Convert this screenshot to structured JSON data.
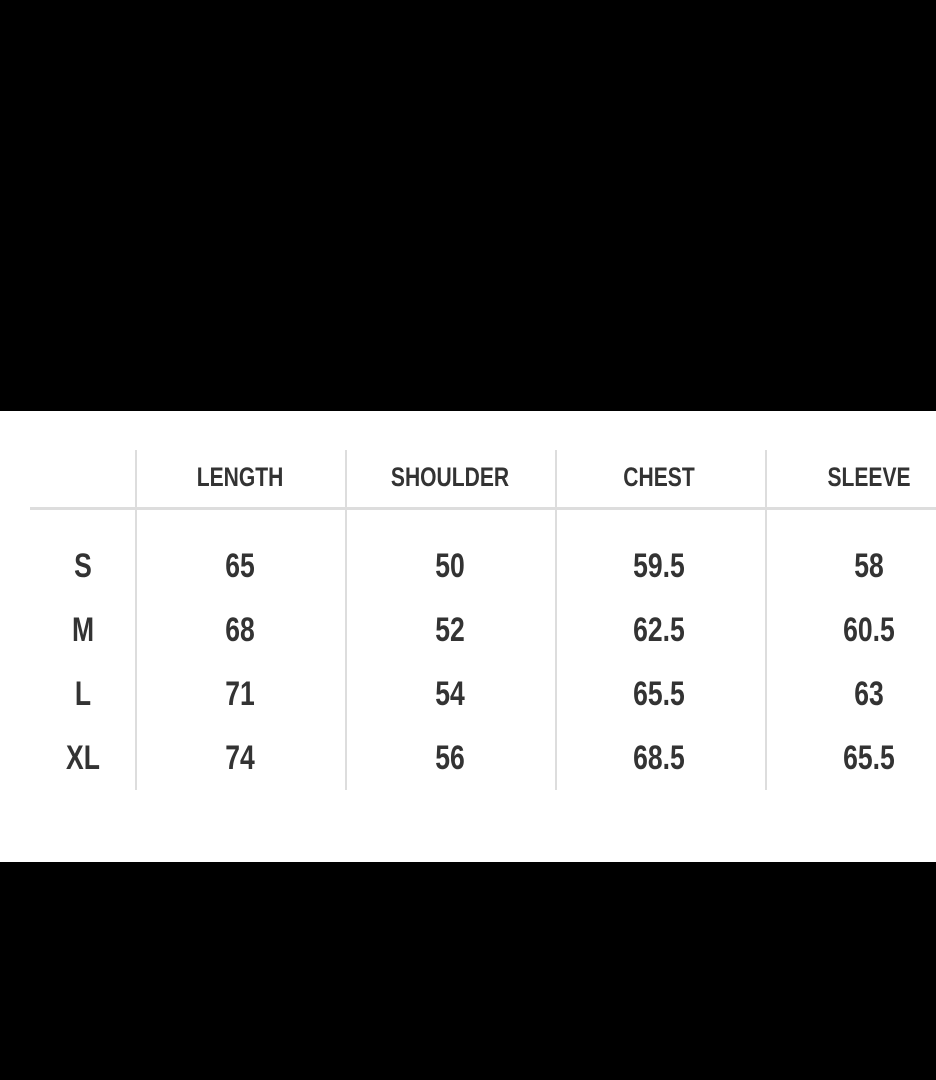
{
  "table": {
    "headers": [
      "",
      "LENGTH",
      "SHOULDER",
      "CHEST",
      "SLEEVE"
    ],
    "rows": [
      {
        "size": "S",
        "length": "65",
        "shoulder": "50",
        "chest": "59.5",
        "sleeve": "58"
      },
      {
        "size": "M",
        "length": "68",
        "shoulder": "52",
        "chest": "62.5",
        "sleeve": "60.5"
      },
      {
        "size": "L",
        "length": "71",
        "shoulder": "54",
        "chest": "65.5",
        "sleeve": "63"
      },
      {
        "size": "XL",
        "length": "74",
        "shoulder": "56",
        "chest": "68.5",
        "sleeve": "65.5"
      }
    ]
  },
  "colors": {
    "background": "#000000",
    "panel": "#ffffff",
    "text": "#333333",
    "rule": "#dddddd"
  }
}
